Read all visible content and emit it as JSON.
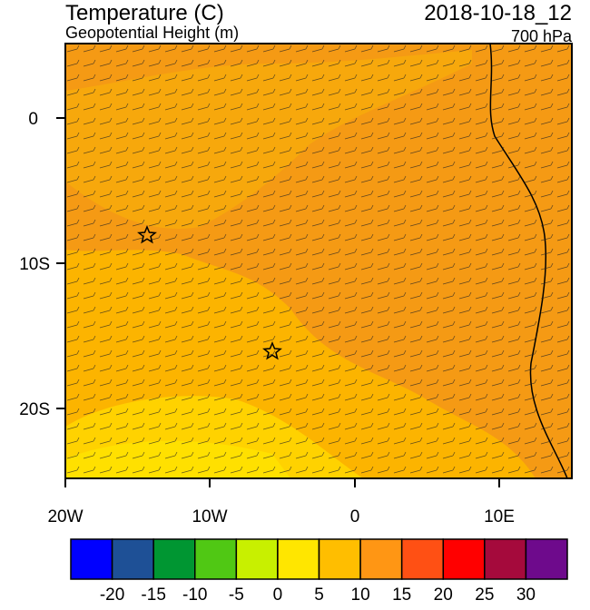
{
  "header": {
    "title": "Temperature (C)",
    "subtitle": "Geopotential Height (m)",
    "date": "2018-10-18_12",
    "level": "700 hPa"
  },
  "axes": {
    "lat_labels": [
      "0",
      "10S",
      "20S"
    ],
    "lon_labels": [
      "20W",
      "10W",
      "0",
      "10E"
    ]
  },
  "colorbar": {
    "colors": [
      "#0000ff",
      "#1e5096",
      "#009632",
      "#50c814",
      "#c8f000",
      "#ffe600",
      "#ffbe00",
      "#ff9614",
      "#ff5014",
      "#ff0000",
      "#a50a3c",
      "#6e0a8c"
    ],
    "labels": [
      -20,
      -15,
      -10,
      -5,
      0,
      5,
      10,
      15,
      20,
      25,
      30
    ]
  }
}
